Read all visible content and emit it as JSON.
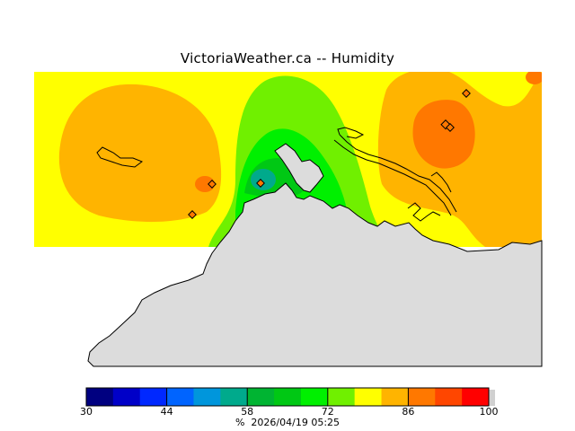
{
  "title": "VictoriaWeather.ca -- Humidity",
  "legend": {
    "colors": [
      "#000080",
      "#0000c8",
      "#0028ff",
      "#0064ff",
      "#0096dc",
      "#00aa8c",
      "#00b432",
      "#00c814",
      "#00f000",
      "#70f000",
      "#ffff00",
      "#ffb400",
      "#ff7800",
      "#ff4600",
      "#ff0000"
    ],
    "tick_labels": [
      "30",
      "44",
      "58",
      "72",
      "86",
      "100"
    ],
    "unit": "%",
    "timestamp": "2026/04/19 05:25"
  },
  "stations": [
    {
      "name": "station-marker"
    },
    {
      "name": "station-marker"
    },
    {
      "name": "station-marker"
    },
    {
      "name": "station-marker"
    },
    {
      "name": "station-marker"
    },
    {
      "name": "station-marker"
    }
  ],
  "colors": {
    "land": "#dcdcdc",
    "yellow": "#ffff00",
    "orange": "#ffb400",
    "dark_orange": "#ff7800",
    "red_orange": "#ff4600",
    "lime": "#70f000",
    "green": "#00f000",
    "dark_green": "#00c814",
    "teal": "#00aa8c"
  }
}
